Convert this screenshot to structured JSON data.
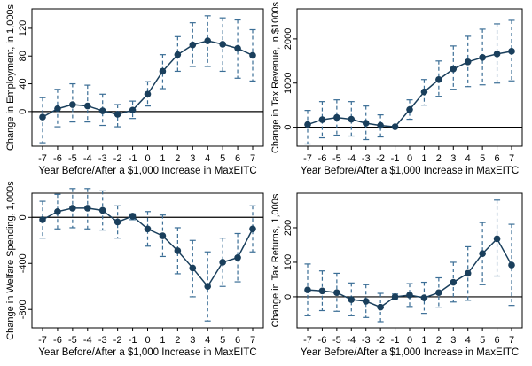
{
  "chart_data": [
    {
      "type": "line",
      "ylabel": "Change in Employment, in 1,000s",
      "xlabel": "Year Before/After a $1,000 Increase in MaxEITC",
      "x": [
        -7,
        -6,
        -5,
        -4,
        -3,
        -2,
        -1,
        0,
        1,
        2,
        3,
        4,
        5,
        6,
        7
      ],
      "xticklabels": [
        "-7",
        "-6",
        "-5",
        "-4",
        "-3",
        "-2",
        "-1",
        "0",
        "1",
        "2",
        "3",
        "4",
        "5",
        "6",
        "7"
      ],
      "y": [
        -8,
        4,
        10,
        8,
        1,
        -4,
        2,
        25,
        58,
        82,
        96,
        102,
        97,
        91,
        81
      ],
      "ci_low": [
        -45,
        -22,
        -15,
        -15,
        -20,
        -22,
        -10,
        8,
        33,
        58,
        65,
        65,
        58,
        48,
        44
      ],
      "ci_high": [
        20,
        32,
        40,
        38,
        25,
        10,
        15,
        43,
        82,
        108,
        128,
        138,
        135,
        132,
        118
      ],
      "yticks": [
        0,
        40,
        80,
        120
      ],
      "ylim": [
        -50,
        148
      ],
      "reference_line": 0
    },
    {
      "type": "line",
      "ylabel": "Change in Tax Revenue, in $1000s",
      "xlabel": "Year Before/After a $1,000 Increase in MaxEITC",
      "x": [
        -7,
        -6,
        -5,
        -4,
        -3,
        -2,
        -1,
        0,
        1,
        2,
        3,
        4,
        5,
        6,
        7
      ],
      "xticklabels": [
        "-7",
        "-6",
        "-5",
        "-4",
        "-3",
        "-2",
        "-1",
        "0",
        "1",
        "2",
        "3",
        "4",
        "5",
        "6",
        "7"
      ],
      "y": [
        60,
        170,
        220,
        180,
        90,
        40,
        10,
        400,
        800,
        1080,
        1320,
        1480,
        1580,
        1660,
        1720
      ],
      "ci_low": [
        -380,
        -240,
        -180,
        -200,
        -280,
        -220,
        -10,
        180,
        500,
        700,
        860,
        920,
        960,
        1000,
        1050
      ],
      "ci_high": [
        380,
        580,
        620,
        580,
        480,
        280,
        30,
        620,
        1080,
        1500,
        1840,
        2060,
        2220,
        2340,
        2420
      ],
      "yticks": [
        0,
        1000,
        2000
      ],
      "ylim": [
        -430,
        2680
      ],
      "reference_line": 0
    },
    {
      "type": "line",
      "ylabel": "Change in Welfare Spending, 1,000s",
      "xlabel": "Year Before/After a $1,000 Increase in MaxEITC",
      "x": [
        -7,
        -6,
        -5,
        -4,
        -3,
        -2,
        -1,
        0,
        1,
        2,
        3,
        4,
        5,
        6,
        7
      ],
      "xticklabels": [
        "-7",
        "-6",
        "-5",
        "-4",
        "-3",
        "-2",
        "-1",
        "0",
        "1",
        "2",
        "3",
        "4",
        "5",
        "6",
        "7"
      ],
      "y": [
        -20,
        50,
        80,
        80,
        60,
        -40,
        10,
        -100,
        -160,
        -290,
        -440,
        -600,
        -390,
        -350,
        -100
      ],
      "ci_low": [
        -180,
        -100,
        -90,
        -100,
        -110,
        -180,
        -20,
        -250,
        -340,
        -490,
        -690,
        -900,
        -600,
        -560,
        -300
      ],
      "ci_high": [
        140,
        200,
        250,
        250,
        230,
        100,
        30,
        50,
        20,
        -90,
        -200,
        -300,
        -180,
        -140,
        100
      ],
      "yticks": [
        -800,
        -400,
        0
      ],
      "yticklabels": [
        "-800",
        "-400",
        "0"
      ],
      "ylim": [
        -960,
        210
      ],
      "reference_line": 0
    },
    {
      "type": "line",
      "ylabel": "Change in Tax Returns, 1,000s",
      "xlabel": "Year Before/After a $1,000 Increase in MaxEITC",
      "x": [
        -7,
        -6,
        -5,
        -4,
        -3,
        -2,
        -1,
        0,
        1,
        2,
        3,
        4,
        5,
        6,
        7
      ],
      "xticklabels": [
        "-7",
        "-6",
        "-5",
        "-4",
        "-3",
        "-2",
        "-1",
        "0",
        "1",
        "2",
        "3",
        "4",
        "5",
        "6",
        "7"
      ],
      "y": [
        20,
        17,
        12,
        -8,
        -13,
        -30,
        0,
        5,
        -3,
        12,
        42,
        68,
        125,
        168,
        92
      ],
      "ci_low": [
        -55,
        -40,
        -42,
        -55,
        -60,
        -72,
        -8,
        -28,
        -48,
        -32,
        -15,
        -10,
        35,
        60,
        -25
      ],
      "ci_high": [
        95,
        75,
        68,
        40,
        35,
        10,
        8,
        38,
        42,
        55,
        100,
        145,
        215,
        280,
        210
      ],
      "yticks": [
        0,
        100,
        200
      ],
      "ylim": [
        -90,
        300
      ],
      "reference_line": 0
    }
  ]
}
